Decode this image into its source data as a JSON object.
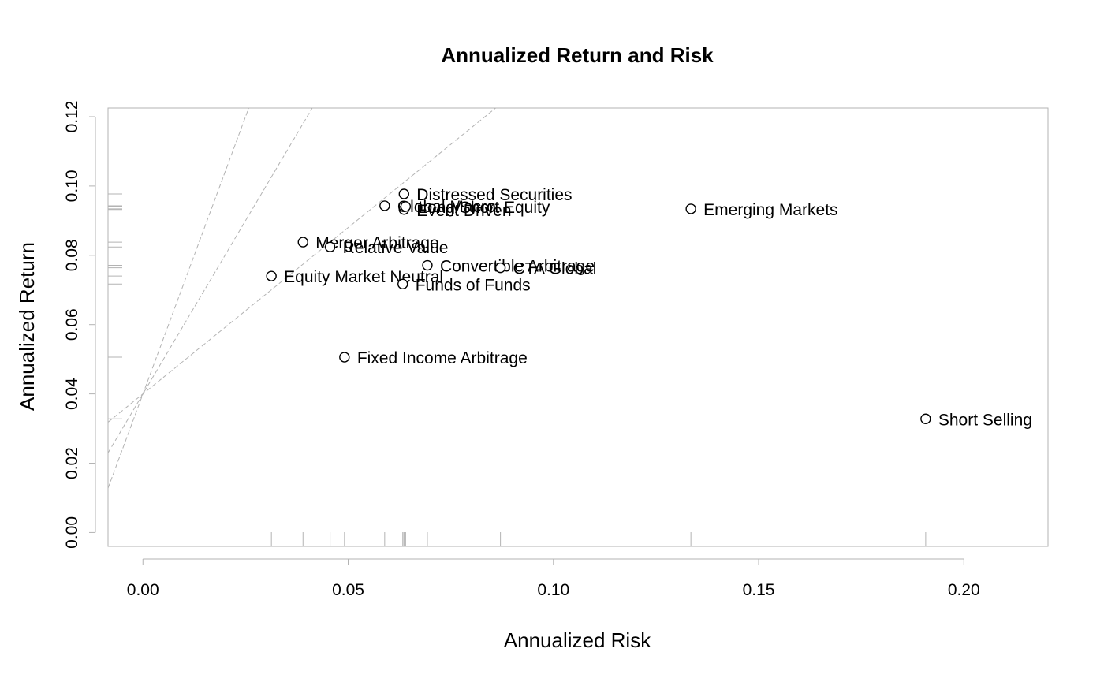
{
  "chart_data": {
    "type": "scatter",
    "title": "Annualized Return and Risk",
    "xlabel": "Annualized Risk",
    "ylabel": "Annualized Return",
    "xlim": [
      -0.0085,
      0.2205
    ],
    "ylim": [
      -0.004,
      0.1225
    ],
    "x_ticks": [
      "0.00",
      "0.05",
      "0.10",
      "0.15",
      "0.20"
    ],
    "y_ticks": [
      "0.00",
      "0.02",
      "0.04",
      "0.06",
      "0.08",
      "0.10",
      "0.12"
    ],
    "grid": false,
    "legend": "none",
    "colors": {
      "axis": "#b3b3b3",
      "marker_stroke": "#000000",
      "marker_fill": "#ffffff",
      "text": "#000000"
    },
    "sharpe_lines": {
      "risk_free_rate": 0.04,
      "slopes": [
        3.2,
        2.0,
        0.96
      ]
    },
    "points": [
      {
        "name": "Convertible Arbitrage",
        "x": 0.0693,
        "y": 0.0771
      },
      {
        "name": "CTA Global",
        "x": 0.0871,
        "y": 0.0764
      },
      {
        "name": "Distressed Securities",
        "x": 0.0636,
        "y": 0.0977
      },
      {
        "name": "Emerging Markets",
        "x": 0.1335,
        "y": 0.0934
      },
      {
        "name": "Equity Market Neutral",
        "x": 0.0313,
        "y": 0.074
      },
      {
        "name": "Event Driven",
        "x": 0.0636,
        "y": 0.0932
      },
      {
        "name": "Fixed Income Arbitrage",
        "x": 0.0491,
        "y": 0.0506
      },
      {
        "name": "Global Macro",
        "x": 0.0589,
        "y": 0.0943
      },
      {
        "name": "Long/Short Equity",
        "x": 0.064,
        "y": 0.0941
      },
      {
        "name": "Merger Arbitrage",
        "x": 0.039,
        "y": 0.0838
      },
      {
        "name": "Relative Value",
        "x": 0.0456,
        "y": 0.0824
      },
      {
        "name": "Short Selling",
        "x": 0.1907,
        "y": 0.0328
      },
      {
        "name": "Funds of Funds",
        "x": 0.0633,
        "y": 0.0717
      }
    ]
  }
}
